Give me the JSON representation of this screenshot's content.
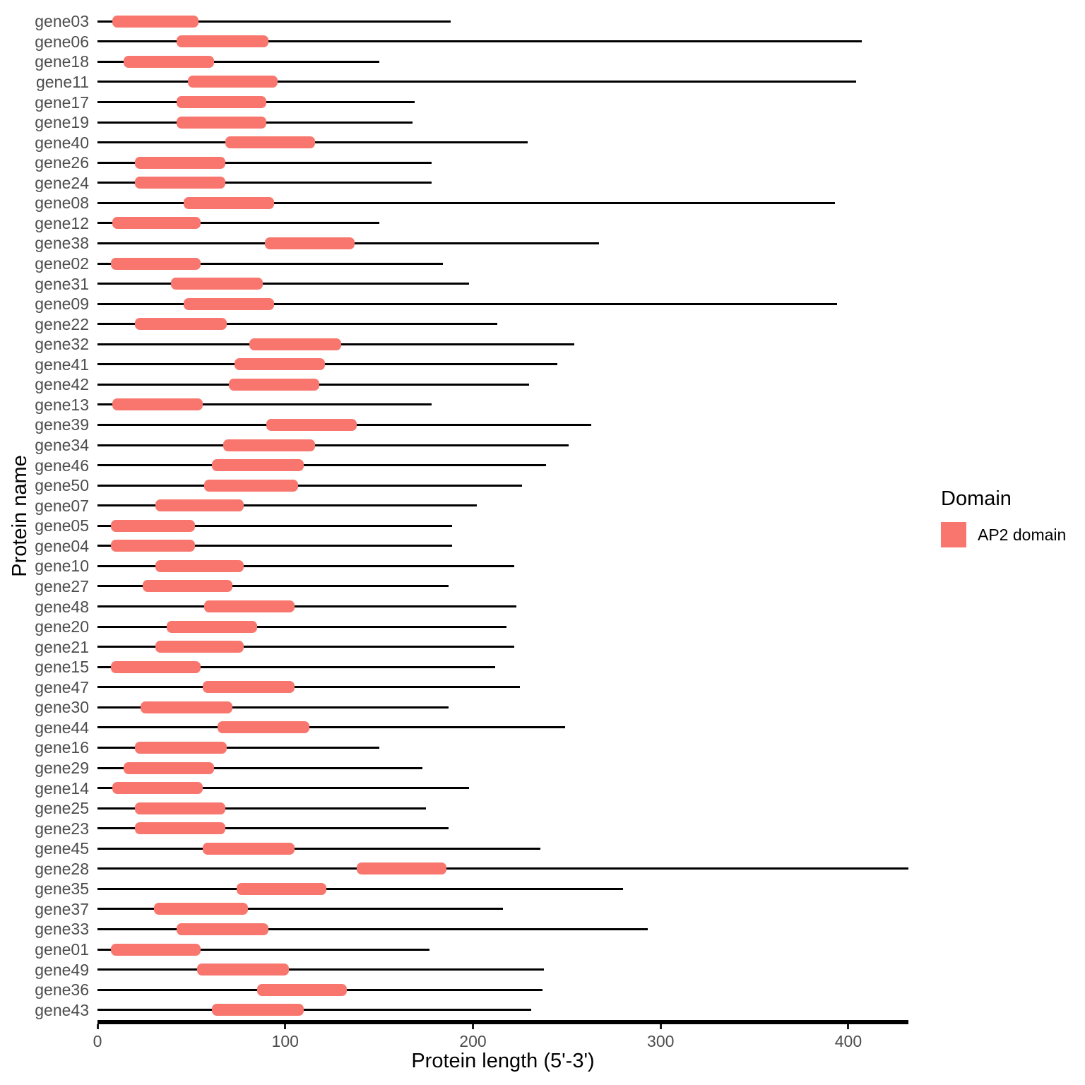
{
  "chart_data": {
    "type": "bar",
    "subtype": "horizontal-range-segments (protein domain map)",
    "title": "",
    "xlabel": "Protein length (5'-3')",
    "ylabel": "Protein name",
    "xlim": [
      0,
      432
    ],
    "x_ticks": [
      0,
      100,
      200,
      300,
      400
    ],
    "grid": false,
    "legend": {
      "title": "Domain",
      "position": "right-middle",
      "items": [
        {
          "label": "AP2 domain",
          "color": "#F8766D"
        }
      ]
    },
    "colors": {
      "domain_fill": "#F8766D",
      "protein_line": "#000000",
      "axis_line": "#000000",
      "axis_text": "#4d4d4d",
      "axis_title": "#000000",
      "background": "#ffffff"
    },
    "genes": [
      {
        "name": "gene03",
        "protein_length": 188,
        "domain_start": 8,
        "domain_end": 54
      },
      {
        "name": "gene06",
        "protein_length": 407,
        "domain_start": 42,
        "domain_end": 91
      },
      {
        "name": "gene18",
        "protein_length": 150,
        "domain_start": 14,
        "domain_end": 62
      },
      {
        "name": "gene11",
        "protein_length": 404,
        "domain_start": 48,
        "domain_end": 96
      },
      {
        "name": "gene17",
        "protein_length": 169,
        "domain_start": 42,
        "domain_end": 90
      },
      {
        "name": "gene19",
        "protein_length": 168,
        "domain_start": 42,
        "domain_end": 90
      },
      {
        "name": "gene40",
        "protein_length": 229,
        "domain_start": 68,
        "domain_end": 116
      },
      {
        "name": "gene26",
        "protein_length": 178,
        "domain_start": 20,
        "domain_end": 68
      },
      {
        "name": "gene24",
        "protein_length": 178,
        "domain_start": 20,
        "domain_end": 68
      },
      {
        "name": "gene08",
        "protein_length": 393,
        "domain_start": 46,
        "domain_end": 94
      },
      {
        "name": "gene12",
        "protein_length": 150,
        "domain_start": 8,
        "domain_end": 55
      },
      {
        "name": "gene38",
        "protein_length": 267,
        "domain_start": 89,
        "domain_end": 137
      },
      {
        "name": "gene02",
        "protein_length": 184,
        "domain_start": 7,
        "domain_end": 55
      },
      {
        "name": "gene31",
        "protein_length": 198,
        "domain_start": 39,
        "domain_end": 88
      },
      {
        "name": "gene09",
        "protein_length": 394,
        "domain_start": 46,
        "domain_end": 94
      },
      {
        "name": "gene22",
        "protein_length": 213,
        "domain_start": 20,
        "domain_end": 69
      },
      {
        "name": "gene32",
        "protein_length": 254,
        "domain_start": 81,
        "domain_end": 130
      },
      {
        "name": "gene41",
        "protein_length": 245,
        "domain_start": 73,
        "domain_end": 121
      },
      {
        "name": "gene42",
        "protein_length": 230,
        "domain_start": 70,
        "domain_end": 118
      },
      {
        "name": "gene13",
        "protein_length": 178,
        "domain_start": 8,
        "domain_end": 56
      },
      {
        "name": "gene39",
        "protein_length": 263,
        "domain_start": 90,
        "domain_end": 138
      },
      {
        "name": "gene34",
        "protein_length": 251,
        "domain_start": 67,
        "domain_end": 116
      },
      {
        "name": "gene46",
        "protein_length": 239,
        "domain_start": 61,
        "domain_end": 110
      },
      {
        "name": "gene50",
        "protein_length": 226,
        "domain_start": 57,
        "domain_end": 107
      },
      {
        "name": "gene07",
        "protein_length": 202,
        "domain_start": 31,
        "domain_end": 78
      },
      {
        "name": "gene05",
        "protein_length": 189,
        "domain_start": 7,
        "domain_end": 52
      },
      {
        "name": "gene04",
        "protein_length": 189,
        "domain_start": 7,
        "domain_end": 52
      },
      {
        "name": "gene10",
        "protein_length": 222,
        "domain_start": 31,
        "domain_end": 78
      },
      {
        "name": "gene27",
        "protein_length": 187,
        "domain_start": 24,
        "domain_end": 72
      },
      {
        "name": "gene48",
        "protein_length": 223,
        "domain_start": 57,
        "domain_end": 105
      },
      {
        "name": "gene20",
        "protein_length": 218,
        "domain_start": 37,
        "domain_end": 85
      },
      {
        "name": "gene21",
        "protein_length": 222,
        "domain_start": 31,
        "domain_end": 78
      },
      {
        "name": "gene15",
        "protein_length": 212,
        "domain_start": 7,
        "domain_end": 55
      },
      {
        "name": "gene47",
        "protein_length": 225,
        "domain_start": 56,
        "domain_end": 105
      },
      {
        "name": "gene30",
        "protein_length": 187,
        "domain_start": 23,
        "domain_end": 72
      },
      {
        "name": "gene44",
        "protein_length": 249,
        "domain_start": 64,
        "domain_end": 113
      },
      {
        "name": "gene16",
        "protein_length": 150,
        "domain_start": 20,
        "domain_end": 69
      },
      {
        "name": "gene29",
        "protein_length": 173,
        "domain_start": 14,
        "domain_end": 62
      },
      {
        "name": "gene14",
        "protein_length": 198,
        "domain_start": 8,
        "domain_end": 56
      },
      {
        "name": "gene25",
        "protein_length": 175,
        "domain_start": 20,
        "domain_end": 68
      },
      {
        "name": "gene23",
        "protein_length": 187,
        "domain_start": 20,
        "domain_end": 68
      },
      {
        "name": "gene45",
        "protein_length": 236,
        "domain_start": 56,
        "domain_end": 105
      },
      {
        "name": "gene28",
        "protein_length": 432,
        "domain_start": 138,
        "domain_end": 186
      },
      {
        "name": "gene35",
        "protein_length": 280,
        "domain_start": 74,
        "domain_end": 122
      },
      {
        "name": "gene37",
        "protein_length": 216,
        "domain_start": 30,
        "domain_end": 80
      },
      {
        "name": "gene33",
        "protein_length": 293,
        "domain_start": 42,
        "domain_end": 91
      },
      {
        "name": "gene01",
        "protein_length": 177,
        "domain_start": 7,
        "domain_end": 55
      },
      {
        "name": "gene49",
        "protein_length": 238,
        "domain_start": 53,
        "domain_end": 102
      },
      {
        "name": "gene36",
        "protein_length": 237,
        "domain_start": 85,
        "domain_end": 133
      },
      {
        "name": "gene43",
        "protein_length": 231,
        "domain_start": 61,
        "domain_end": 110
      }
    ]
  }
}
